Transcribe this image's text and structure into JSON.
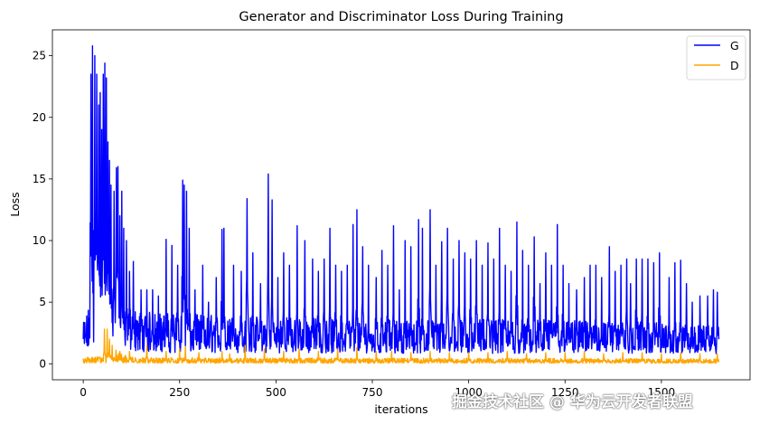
{
  "chart_data": {
    "type": "line",
    "title": "Generator and Discriminator Loss During Training",
    "xlabel": "iterations",
    "ylabel": "Loss",
    "xlim": [
      -80,
      1730
    ],
    "ylim": [
      -1.3,
      27.1
    ],
    "xticks": [
      0,
      250,
      500,
      750,
      1000,
      1250,
      1500
    ],
    "yticks": [
      0,
      5,
      10,
      15,
      20,
      25
    ],
    "grid": false,
    "legend_position": "top-right",
    "n_points": 1650,
    "series": [
      {
        "name": "G",
        "color": "#0000ff",
        "peaks": [
          [
            18,
            8.5
          ],
          [
            20,
            23.5
          ],
          [
            24,
            25.8
          ],
          [
            30,
            25.0
          ],
          [
            35,
            23.5
          ],
          [
            40,
            21.0
          ],
          [
            44,
            22.0
          ],
          [
            48,
            19.0
          ],
          [
            52,
            23.5
          ],
          [
            56,
            24.4
          ],
          [
            60,
            23.2
          ],
          [
            64,
            18.0
          ],
          [
            68,
            16.5
          ],
          [
            72,
            14.5
          ],
          [
            80,
            14.0
          ],
          [
            86,
            15.9
          ],
          [
            90,
            16.0
          ],
          [
            95,
            12.0
          ],
          [
            100,
            14.0
          ],
          [
            105,
            11.0
          ],
          [
            112,
            10.0
          ],
          [
            120,
            7.5
          ],
          [
            130,
            8.3
          ],
          [
            150,
            6.0
          ],
          [
            165,
            6.0
          ],
          [
            180,
            6.0
          ],
          [
            195,
            5.5
          ],
          [
            215,
            10.1
          ],
          [
            230,
            9.6
          ],
          [
            245,
            8.0
          ],
          [
            258,
            14.9
          ],
          [
            262,
            14.5
          ],
          [
            268,
            14.0
          ],
          [
            275,
            11.0
          ],
          [
            290,
            6.0
          ],
          [
            310,
            8.0
          ],
          [
            325,
            5.0
          ],
          [
            345,
            7.0
          ],
          [
            360,
            10.9
          ],
          [
            365,
            11.0
          ],
          [
            390,
            8.0
          ],
          [
            410,
            7.5
          ],
          [
            425,
            13.4
          ],
          [
            440,
            9.0
          ],
          [
            460,
            6.5
          ],
          [
            480,
            15.4
          ],
          [
            490,
            13.3
          ],
          [
            505,
            7.0
          ],
          [
            520,
            9.0
          ],
          [
            535,
            8.0
          ],
          [
            555,
            11.2
          ],
          [
            575,
            10.0
          ],
          [
            595,
            8.5
          ],
          [
            610,
            7.5
          ],
          [
            625,
            8.5
          ],
          [
            640,
            11.0
          ],
          [
            655,
            8.0
          ],
          [
            670,
            7.5
          ],
          [
            685,
            8.0
          ],
          [
            700,
            11.3
          ],
          [
            710,
            12.5
          ],
          [
            725,
            9.5
          ],
          [
            740,
            8.0
          ],
          [
            760,
            7.0
          ],
          [
            775,
            9.2
          ],
          [
            790,
            8.0
          ],
          [
            805,
            11.2
          ],
          [
            820,
            6.0
          ],
          [
            835,
            10.0
          ],
          [
            850,
            9.5
          ],
          [
            870,
            11.7
          ],
          [
            880,
            11.0
          ],
          [
            900,
            12.5
          ],
          [
            915,
            8.0
          ],
          [
            930,
            9.9
          ],
          [
            945,
            11.0
          ],
          [
            960,
            8.5
          ],
          [
            975,
            10.0
          ],
          [
            990,
            9.0
          ],
          [
            1005,
            8.5
          ],
          [
            1020,
            10.0
          ],
          [
            1035,
            8.0
          ],
          [
            1050,
            9.8
          ],
          [
            1065,
            8.5
          ],
          [
            1080,
            11.0
          ],
          [
            1095,
            8.0
          ],
          [
            1110,
            7.5
          ],
          [
            1125,
            11.5
          ],
          [
            1140,
            9.2
          ],
          [
            1155,
            8.0
          ],
          [
            1170,
            10.3
          ],
          [
            1185,
            6.5
          ],
          [
            1200,
            9.0
          ],
          [
            1215,
            8.0
          ],
          [
            1230,
            11.3
          ],
          [
            1245,
            8.0
          ],
          [
            1260,
            6.5
          ],
          [
            1280,
            6.0
          ],
          [
            1300,
            7.0
          ],
          [
            1315,
            8.0
          ],
          [
            1330,
            8.0
          ],
          [
            1345,
            7.0
          ],
          [
            1365,
            9.5
          ],
          [
            1380,
            7.5
          ],
          [
            1395,
            8.0
          ],
          [
            1410,
            8.5
          ],
          [
            1420,
            6.5
          ],
          [
            1435,
            8.5
          ],
          [
            1450,
            8.5
          ],
          [
            1465,
            8.5
          ],
          [
            1480,
            8.2
          ],
          [
            1495,
            9.0
          ],
          [
            1520,
            7.0
          ],
          [
            1535,
            8.2
          ],
          [
            1550,
            8.4
          ],
          [
            1565,
            6.5
          ],
          [
            1580,
            5.0
          ],
          [
            1600,
            5.5
          ],
          [
            1620,
            5.5
          ],
          [
            1635,
            6.0
          ],
          [
            1645,
            5.8
          ]
        ],
        "baseline": [
          [
            0,
            2.0
          ],
          [
            30,
            4.0
          ],
          [
            80,
            3.2
          ],
          [
            150,
            2.6
          ],
          [
            400,
            2.4
          ],
          [
            800,
            2.2
          ],
          [
            1200,
            2.2
          ],
          [
            1650,
            2.0
          ]
        ],
        "floor": [
          [
            0,
            1.0
          ],
          [
            40,
            1.2
          ],
          [
            200,
            0.9
          ],
          [
            1650,
            0.8
          ]
        ]
      },
      {
        "name": "D",
        "color": "#ffa500",
        "peaks": [
          [
            55,
            2.8
          ],
          [
            62,
            2.8
          ],
          [
            68,
            2.0
          ],
          [
            75,
            1.5
          ],
          [
            85,
            1.1
          ],
          [
            95,
            1.0
          ],
          [
            120,
            1.0
          ],
          [
            165,
            1.5
          ],
          [
            215,
            1.0
          ],
          [
            250,
            1.2
          ],
          [
            265,
            1.4
          ],
          [
            300,
            0.9
          ],
          [
            360,
            1.0
          ],
          [
            380,
            0.8
          ],
          [
            420,
            1.5
          ],
          [
            470,
            1.2
          ],
          [
            520,
            1.0
          ],
          [
            560,
            1.2
          ],
          [
            610,
            1.0
          ],
          [
            660,
            1.2
          ],
          [
            710,
            1.3
          ],
          [
            760,
            1.0
          ],
          [
            800,
            1.0
          ],
          [
            850,
            0.9
          ],
          [
            900,
            1.0
          ],
          [
            950,
            0.9
          ],
          [
            1000,
            0.9
          ],
          [
            1050,
            0.9
          ],
          [
            1100,
            1.0
          ],
          [
            1150,
            0.8
          ],
          [
            1200,
            0.9
          ],
          [
            1250,
            0.9
          ],
          [
            1300,
            1.0
          ],
          [
            1350,
            0.8
          ],
          [
            1400,
            0.9
          ],
          [
            1450,
            0.9
          ],
          [
            1500,
            0.8
          ],
          [
            1550,
            0.9
          ],
          [
            1600,
            0.8
          ],
          [
            1645,
            0.8
          ]
        ],
        "baseline": [
          [
            0,
            0.3
          ],
          [
            50,
            0.4
          ],
          [
            70,
            0.6
          ],
          [
            150,
            0.3
          ],
          [
            1650,
            0.25
          ]
        ],
        "floor": [
          [
            0,
            0.05
          ],
          [
            1650,
            0.05
          ]
        ]
      }
    ]
  },
  "watermark": "掘金技术社区 @ 华为云开发者联盟"
}
